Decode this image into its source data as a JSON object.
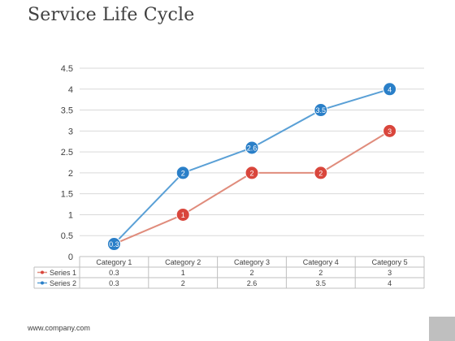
{
  "slide": {
    "title": "Service Life Cycle",
    "footer": "www.company.com"
  },
  "chart_data": {
    "type": "line",
    "categories": [
      "Category 1",
      "Category 2",
      "Category 3",
      "Category 4",
      "Category 5"
    ],
    "series": [
      {
        "name": "Series 1",
        "values": [
          0.3,
          1,
          2,
          2,
          3
        ],
        "color": "#d9463c",
        "line_color": "#e08c7c"
      },
      {
        "name": "Series 2",
        "values": [
          0.3,
          2,
          2.6,
          3.5,
          4
        ],
        "color": "#2a7fc8",
        "line_color": "#5aa0d6"
      }
    ],
    "ylim": [
      0,
      4.5
    ],
    "yticks": [
      "0",
      "0.5",
      "1",
      "1.5",
      "2",
      "2.5",
      "3",
      "3.5",
      "4",
      "4.5"
    ],
    "grid": true,
    "data_labels": true,
    "data_table": true
  }
}
